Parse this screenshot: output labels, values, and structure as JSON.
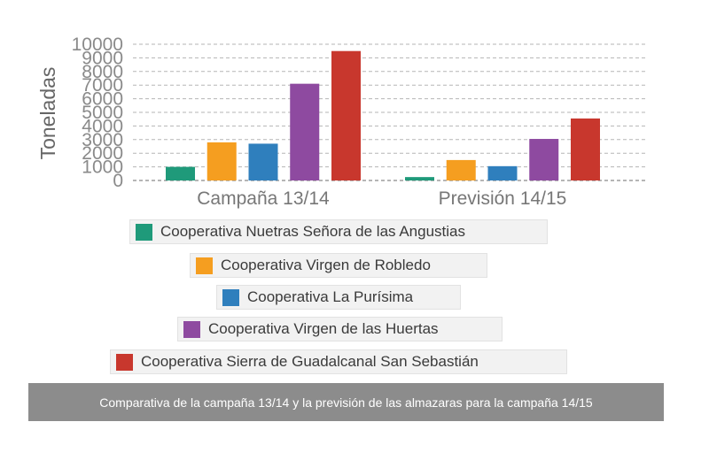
{
  "chart_data": {
    "type": "bar",
    "ylabel": "Toneladas",
    "ylim": [
      0,
      10000
    ],
    "yticks": [
      0,
      1000,
      2000,
      3000,
      4000,
      5000,
      6000,
      7000,
      8000,
      9000,
      10000
    ],
    "categories": [
      "Campaña 13/14",
      "Previsión 14/15"
    ],
    "series": [
      {
        "name": "Cooperativa Nuetras Señora de las Angustias",
        "color": "#1f9a7a",
        "values": [
          1000,
          250
        ]
      },
      {
        "name": "Cooperativa Virgen de Robledo",
        "color": "#f59e20",
        "values": [
          2800,
          1500
        ]
      },
      {
        "name": "Cooperativa La Purísima",
        "color": "#2f7fbd",
        "values": [
          2700,
          1050
        ]
      },
      {
        "name": "Cooperativa Virgen de las Huertas",
        "color": "#8e4aa0",
        "values": [
          7100,
          3050
        ]
      },
      {
        "name": "Cooperativa Sierra de Guadalcanal San Sebastián",
        "color": "#c8372d",
        "values": [
          9500,
          4550
        ]
      }
    ],
    "grid": true,
    "legend_position": "bottom"
  },
  "caption": "Comparativa de la campaña 13/14 y la previsión de las almazaras para la campaña 14/15"
}
